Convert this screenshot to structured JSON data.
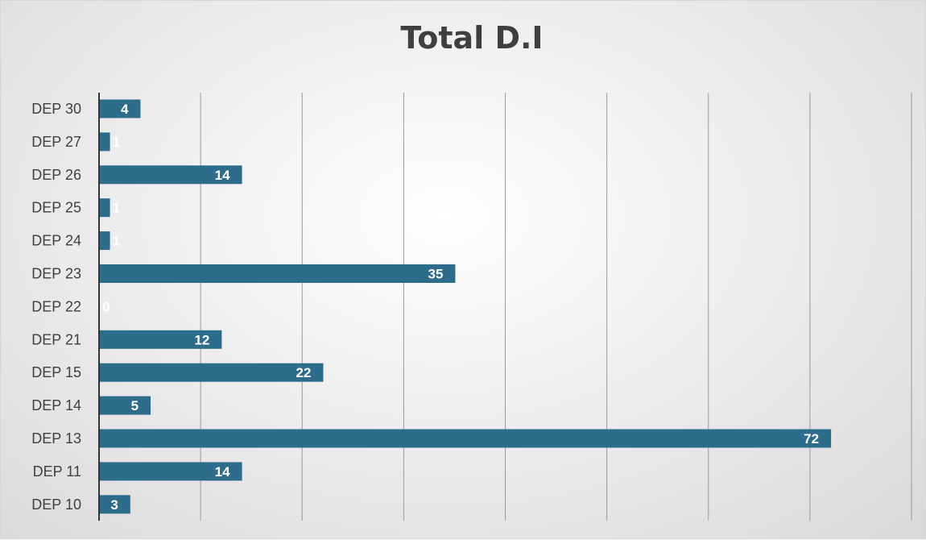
{
  "chart_data": {
    "type": "bar",
    "orientation": "horizontal",
    "title": "Total D.I",
    "categories": [
      "DEP 30",
      "DEP 27",
      "DEP 26",
      "DEP 25",
      "DEP 24",
      "DEP 23",
      "DEP 22",
      "DEP 21",
      "DEP 15",
      "DEP 14",
      "DEP 13",
      "DEP 11",
      "DEP 10"
    ],
    "values": [
      4,
      1,
      14,
      1,
      1,
      35,
      0,
      12,
      22,
      5,
      72,
      14,
      3
    ],
    "data_labels": true,
    "xlim": [
      0,
      80
    ],
    "grid": true,
    "legend": "none",
    "bar_color": "#2e6c8c",
    "label_color": "#ffffff"
  }
}
